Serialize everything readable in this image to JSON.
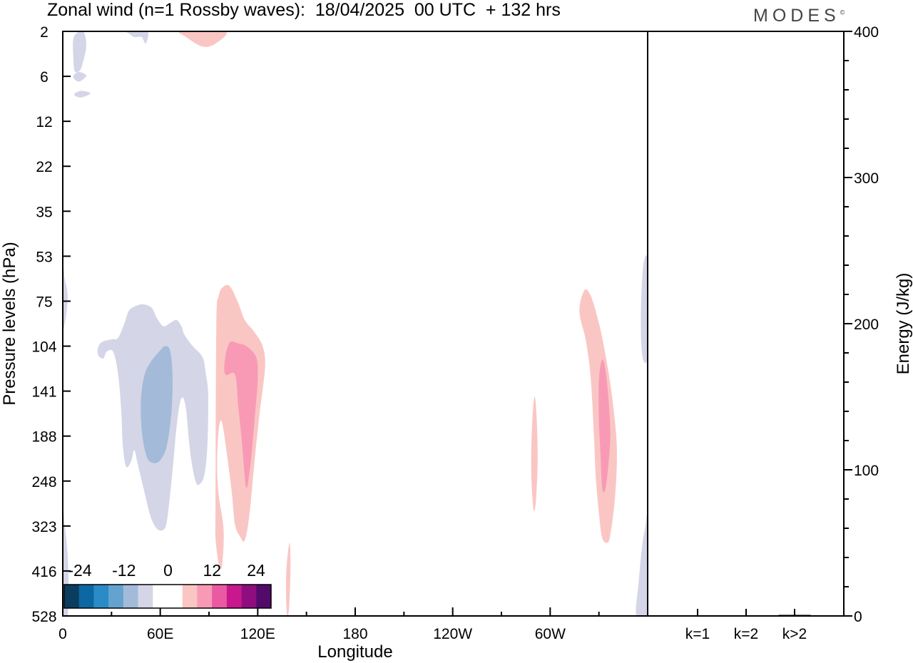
{
  "header": {
    "title": "Zonal wind (n=1 Rossby waves):  18/04/2025  00 UTC  + 132 hrs",
    "brand": "MODES",
    "brand_mark": "©"
  },
  "chart_data": [
    {
      "type": "heatmap",
      "title": "Zonal wind (n=1 Rossby waves):  18/04/2025  00 UTC  + 132 hrs",
      "xlabel": "Longitude",
      "ylabel": "Pressure levels (hPa)",
      "x_tick_labels": [
        "0",
        "60E",
        "120E",
        "180",
        "120W",
        "60W"
      ],
      "x_ticks_deg": [
        0,
        60,
        120,
        180,
        240,
        300
      ],
      "xlim_deg": [
        0,
        360
      ],
      "y_tick_labels": [
        "2",
        "6",
        "12",
        "22",
        "35",
        "53",
        "75",
        "104",
        "141",
        "188",
        "248",
        "323",
        "416",
        "528"
      ],
      "y_scale": "pressure levels (top 2 hPa, bottom 528 hPa)",
      "colorbar": {
        "tick_labels": [
          "-24",
          "-12",
          "0",
          "12",
          "24"
        ],
        "colors": [
          "#0b3d5f",
          "#0d67a3",
          "#2a8bc7",
          "#64a3cf",
          "#a3bbd9",
          "#d4d5e7",
          "#ffffff",
          "#ffffff",
          "#fac6c4",
          "#f89ab5",
          "#ea5aa3",
          "#c7188e",
          "#8e0e7f",
          "#520b6a"
        ],
        "placement": "bottom-left"
      },
      "contours": [
        {
          "name": "stratosphere-easterly-1",
          "level": -6,
          "color": "#d4d5e7",
          "points": [
            [
              6.8,
              2.3
            ],
            [
              12.5,
              2.0
            ],
            [
              14.5,
              2.8
            ],
            [
              12.5,
              4.2
            ],
            [
              10.5,
              5.2
            ],
            [
              7.4,
              5.3
            ],
            [
              6.5,
              3.8
            ]
          ]
        },
        {
          "name": "stratosphere-easterly-2",
          "level": -6,
          "color": "#d4d5e7",
          "points": [
            [
              6.8,
              5.8
            ],
            [
              10.2,
              5.4
            ],
            [
              14.5,
              5.9
            ],
            [
              10.2,
              6.5
            ],
            [
              6.9,
              6.2
            ]
          ]
        },
        {
          "name": "stratosphere-easterly-3",
          "level": -6,
          "color": "#d4d5e7",
          "points": [
            [
              7.5,
              7.8
            ],
            [
              11.5,
              7.5
            ],
            [
              17,
              7.8
            ],
            [
              11.5,
              8.3
            ],
            [
              7.6,
              8.1
            ]
          ]
        },
        {
          "name": "stratosphere-easterly-4",
          "level": -6,
          "color": "#d4d5e7",
          "points": [
            [
              40,
              2.0
            ],
            [
              52,
              2.0
            ],
            [
              51,
              2.7
            ],
            [
              48.5,
              2.3
            ],
            [
              44,
              2.3
            ],
            [
              40.5,
              2.1
            ]
          ]
        },
        {
          "name": "stratosphere-westerly-top",
          "level": 6,
          "color": "#fac6c4",
          "points": [
            [
              73,
              2.0
            ],
            [
              100,
              2.0
            ],
            [
              94,
              2.7
            ],
            [
              86,
              2.9
            ],
            [
              76,
              2.3
            ]
          ]
        },
        {
          "name": "tropo-easterly-main",
          "level": -6,
          "color": "#d4d5e7",
          "points": [
            [
              21.5,
              106
            ],
            [
              24,
              101
            ],
            [
              30,
              99
            ],
            [
              34,
              98
            ],
            [
              38,
              88
            ],
            [
              41,
              80
            ],
            [
              47,
              77
            ],
            [
              51,
              77
            ],
            [
              55,
              79
            ],
            [
              58,
              85
            ],
            [
              62,
              90
            ],
            [
              66,
              88
            ],
            [
              70,
              86
            ],
            [
              73,
              90
            ],
            [
              75,
              96
            ],
            [
              80,
              104
            ],
            [
              86,
              112
            ],
            [
              88,
              125
            ],
            [
              89.5,
              145
            ],
            [
              89,
              200
            ],
            [
              87,
              240
            ],
            [
              84,
              253
            ],
            [
              82,
              250
            ],
            [
              80,
              230
            ],
            [
              78,
              200
            ],
            [
              76,
              160
            ],
            [
              74,
              147
            ],
            [
              72,
              153
            ],
            [
              70,
              178
            ],
            [
              68,
              222
            ],
            [
              66,
              270
            ],
            [
              64,
              315
            ],
            [
              62,
              330
            ],
            [
              58,
              328
            ],
            [
              54,
              305
            ],
            [
              50,
              262
            ],
            [
              46,
              222
            ],
            [
              44,
              205
            ],
            [
              42,
              220
            ],
            [
              39,
              227
            ],
            [
              37,
              200
            ],
            [
              36,
              160
            ],
            [
              34,
              125
            ],
            [
              31,
              108
            ],
            [
              27,
              108
            ],
            [
              25,
              113
            ],
            [
              22,
              111
            ]
          ]
        },
        {
          "name": "tropo-easterly-core",
          "level": -12,
          "color": "#a3bbd9",
          "points": [
            [
              48,
              153
            ],
            [
              50,
              128
            ],
            [
              54,
              116
            ],
            [
              60,
              107
            ],
            [
              63,
              104
            ],
            [
              66,
              107
            ],
            [
              67.5,
              125
            ],
            [
              67,
              160
            ],
            [
              64,
              200
            ],
            [
              60,
              218
            ],
            [
              56,
              222
            ],
            [
              52,
              215
            ],
            [
              49,
              188
            ]
          ]
        },
        {
          "name": "tropo-westerly-a",
          "level": 6,
          "color": "#fac6c4",
          "points": [
            [
              94.5,
              90
            ],
            [
              96,
              72
            ],
            [
              99,
              67
            ],
            [
              103,
              67
            ],
            [
              108,
              76
            ],
            [
              112,
              86
            ],
            [
              118,
              94
            ],
            [
              123,
              104
            ],
            [
              124.5,
              120
            ],
            [
              121,
              165
            ],
            [
              118,
              220
            ],
            [
              115,
              300
            ],
            [
              112,
              350
            ],
            [
              109,
              342
            ],
            [
              106,
              320
            ],
            [
              104,
              265
            ],
            [
              101,
              210
            ],
            [
              98,
              172
            ],
            [
              96,
              180
            ],
            [
              95,
              225
            ],
            [
              96,
              270
            ],
            [
              99,
              330
            ],
            [
              98,
              405
            ],
            [
              96,
              400
            ],
            [
              94,
              345
            ],
            [
              94,
              295
            ]
          ]
        },
        {
          "name": "tropo-westerly-a-core",
          "level": 12,
          "color": "#f89ab5",
          "points": [
            [
              100,
              112
            ],
            [
              103,
              101
            ],
            [
              108,
              102
            ],
            [
              113,
              104
            ],
            [
              119,
              112
            ],
            [
              120,
              130
            ],
            [
              118,
              170
            ],
            [
              116,
              215
            ],
            [
              114,
              250
            ],
            [
              113,
              258
            ],
            [
              112,
              242
            ],
            [
              110,
              190
            ],
            [
              108,
              155
            ],
            [
              106,
              126
            ],
            [
              100,
              126
            ]
          ]
        },
        {
          "name": "tropo-westerly-b",
          "level": 6,
          "color": "#fac6c4",
          "points": [
            [
              288.3,
              220
            ],
            [
              289,
              170
            ],
            [
              290.5,
              146
            ],
            [
              291.8,
              172
            ],
            [
              292.3,
              220
            ],
            [
              291.3,
              276
            ],
            [
              290,
              296
            ],
            [
              288.8,
              262
            ]
          ]
        },
        {
          "name": "tropo-westerly-c",
          "level": 6,
          "color": "#fac6c4",
          "points": [
            [
              318,
              81
            ],
            [
              321,
              69
            ],
            [
              325,
              72
            ],
            [
              330,
              88
            ],
            [
              334,
              110
            ],
            [
              338,
              145
            ],
            [
              341,
              200
            ],
            [
              340,
              270
            ],
            [
              337,
              340
            ],
            [
              335,
              355
            ],
            [
              332,
              345
            ],
            [
              330,
              300
            ],
            [
              328,
              240
            ],
            [
              327,
              190
            ],
            [
              325,
              130
            ],
            [
              322,
              100
            ]
          ]
        },
        {
          "name": "tropo-westerly-c-core",
          "level": 12,
          "color": "#f89ab5",
          "points": [
            [
              330,
              130
            ],
            [
              332,
              114
            ],
            [
              334,
              122
            ],
            [
              336,
              150
            ],
            [
              337,
              185
            ],
            [
              336,
              220
            ],
            [
              334,
              260
            ],
            [
              332,
              258
            ],
            [
              331,
              210
            ],
            [
              330,
              170
            ]
          ]
        },
        {
          "name": "lower-westerly-thin",
          "level": 6,
          "color": "#fac6c4",
          "points": [
            [
              138,
              395
            ],
            [
              139.6,
              355
            ],
            [
              140.2,
              405
            ],
            [
              139.4,
              500
            ],
            [
              138.3,
              528
            ],
            [
              137.6,
              500
            ],
            [
              137.4,
              440
            ]
          ]
        },
        {
          "name": "edge-easterly-left-upper",
          "level": -6,
          "color": "#d4d5e7",
          "points": [
            [
              0,
              58
            ],
            [
              1.2,
              63
            ],
            [
              3,
              72
            ],
            [
              1.8,
              85
            ],
            [
              0,
              89
            ]
          ]
        },
        {
          "name": "edge-easterly-left-lower",
          "level": -6,
          "color": "#d4d5e7",
          "points": [
            [
              0,
              305
            ],
            [
              1.2,
              320
            ],
            [
              3,
              380
            ],
            [
              3.5,
              440
            ],
            [
              3,
              528
            ],
            [
              0,
              528
            ]
          ]
        },
        {
          "name": "edge-easterly-right-upper",
          "level": -6,
          "color": "#d4d5e7",
          "points": [
            [
              356,
              75
            ],
            [
              357.5,
              56
            ],
            [
              360,
              56
            ],
            [
              360,
              108
            ],
            [
              357.5,
              115
            ],
            [
              356,
              100
            ]
          ]
        },
        {
          "name": "edge-easterly-right-lower",
          "level": -6,
          "color": "#d4d5e7",
          "points": [
            [
              353,
              528
            ],
            [
              354.5,
              440
            ],
            [
              356.5,
              365
            ],
            [
              358.5,
              325
            ],
            [
              360,
              310
            ],
            [
              360,
              528
            ]
          ]
        }
      ]
    },
    {
      "type": "bar",
      "ylabel": "Energy (J/kg)",
      "categories": [
        "k=1",
        "k=2",
        "k>2"
      ],
      "values": [
        0,
        0,
        0.5
      ],
      "ylim": [
        0,
        400
      ],
      "y_tick_labels": [
        "0",
        "100",
        "200",
        "300",
        "400"
      ],
      "y_ticks": [
        0,
        100,
        200,
        300,
        400
      ]
    }
  ]
}
